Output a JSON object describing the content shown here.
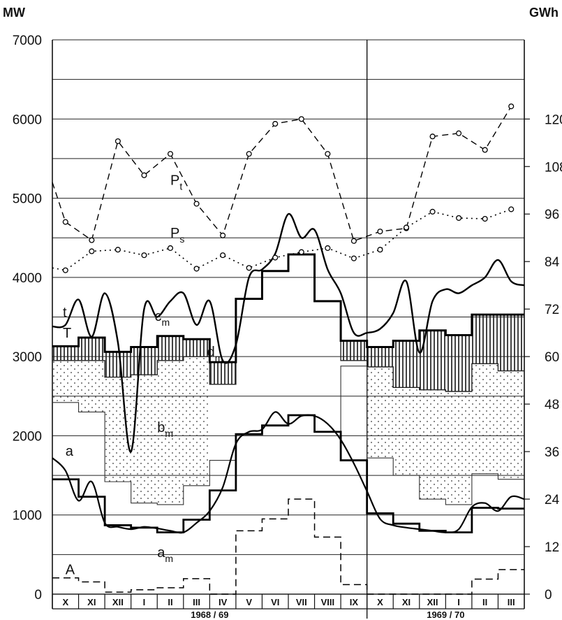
{
  "chart_data": {
    "type": "line",
    "y_left_label": "MW",
    "y_right_label": "GWh",
    "ylim_left": [
      0,
      7000
    ],
    "ylim_right": [
      0,
      140
    ],
    "y_left_ticks": [
      0,
      1000,
      2000,
      3000,
      4000,
      5000,
      6000,
      7000
    ],
    "y_right_ticks": [
      0,
      12,
      24,
      36,
      48,
      60,
      72,
      84,
      96,
      108,
      120
    ],
    "months": [
      "X",
      "XI",
      "XII",
      "I",
      "II",
      "III",
      "IV",
      "V",
      "VI",
      "VII",
      "VIII",
      "IX",
      "X",
      "XI",
      "XII",
      "I",
      "II",
      "III"
    ],
    "periods": [
      {
        "label": "1968 / 69",
        "start": 0,
        "end": 12
      },
      {
        "label": "1969 / 70",
        "start": 12,
        "end": 18
      }
    ],
    "grid": true,
    "series": [
      {
        "name": "Pt",
        "style": "dashed",
        "marker": "circle",
        "x": [
          0,
          0.5,
          1.5,
          2.5,
          3.5,
          4.5,
          5.5,
          6.5,
          7.5,
          8.5,
          9.5,
          10.5,
          11.5,
          12.5,
          13.5,
          14.5,
          15.5,
          16.5,
          17.5
        ],
        "y": [
          5200,
          4700,
          4470,
          5720,
          5290,
          5560,
          4930,
          4530,
          5560,
          5940,
          6000,
          5560,
          4460,
          4580,
          4620,
          5780,
          5820,
          5610,
          6160
        ]
      },
      {
        "name": "Ps",
        "style": "dotted",
        "marker": "circle",
        "x": [
          0,
          0.5,
          1.5,
          2.5,
          3.5,
          4.5,
          5.5,
          6.5,
          7.5,
          8.5,
          9.5,
          10.5,
          11.5,
          12.5,
          13.5,
          14.5,
          15.5,
          16.5,
          17.5
        ],
        "y": [
          4120,
          4090,
          4330,
          4350,
          4280,
          4370,
          4110,
          4280,
          4120,
          4250,
          4320,
          4370,
          4240,
          4350,
          4630,
          4830,
          4750,
          4740,
          4860
        ]
      },
      {
        "name": "t",
        "style": "solid",
        "x": [
          0,
          0.5,
          1,
          1.5,
          2,
          2.5,
          3,
          3.5,
          4,
          4.5,
          5,
          5.5,
          6,
          6.5,
          7,
          7.5,
          8,
          8.5,
          9,
          9.5,
          10,
          10.5,
          11,
          11.5,
          12,
          12.5,
          13,
          13.5,
          14,
          14.5,
          15,
          15.5,
          16,
          16.5,
          17,
          17.5,
          18
        ],
        "y": [
          3380,
          3400,
          3720,
          3250,
          3800,
          3180,
          1800,
          3600,
          3500,
          3700,
          3800,
          3400,
          3700,
          2950,
          3150,
          4000,
          4100,
          4300,
          4800,
          4500,
          4600,
          4100,
          3800,
          3300,
          3300,
          3350,
          3550,
          3950,
          3050,
          3700,
          3850,
          3800,
          3900,
          4000,
          4220,
          3950,
          3900
        ]
      },
      {
        "name": "T",
        "style": "step",
        "x": [
          0,
          1,
          2,
          3,
          4,
          5,
          6,
          7,
          8,
          9,
          10,
          11,
          12,
          13,
          14,
          15,
          16,
          17
        ],
        "y": [
          3130,
          3240,
          3060,
          3120,
          3260,
          3220,
          2930,
          3730,
          4080,
          4290,
          3700,
          3200,
          3120,
          3200,
          3330,
          3270,
          3530,
          3530
        ]
      },
      {
        "name": "a",
        "style": "solid",
        "x": [
          0,
          0.5,
          1,
          1.5,
          2,
          2.5,
          3,
          3.5,
          4,
          4.5,
          5,
          5.5,
          6,
          6.5,
          7,
          7.5,
          8,
          8.5,
          9,
          9.5,
          10,
          10.5,
          11,
          11.5,
          12,
          12.5,
          13,
          13.5,
          14,
          14.5,
          15,
          15.5,
          16,
          16.5,
          17,
          17.5,
          18
        ],
        "y": [
          1720,
          1560,
          1180,
          1420,
          900,
          850,
          820,
          850,
          830,
          800,
          780,
          900,
          1050,
          1350,
          1900,
          2050,
          2080,
          2300,
          2150,
          2250,
          2250,
          2150,
          1950,
          1650,
          1300,
          950,
          870,
          840,
          820,
          800,
          780,
          820,
          1100,
          1150,
          1050,
          1230,
          1200
        ]
      },
      {
        "name": "am",
        "style": "step",
        "x": [
          0,
          1,
          2,
          3,
          4,
          5,
          6,
          7,
          8,
          9,
          10,
          11,
          12,
          13,
          14,
          15,
          16,
          17
        ],
        "y": [
          1450,
          1230,
          870,
          840,
          780,
          940,
          1310,
          2020,
          2130,
          2260,
          2050,
          1690,
          1020,
          890,
          800,
          780,
          1090,
          1080
        ]
      },
      {
        "name": "A",
        "style": "dashed-step",
        "x": [
          0,
          1,
          2,
          3,
          4,
          5,
          6,
          7,
          8,
          9,
          10,
          11,
          12,
          13,
          14,
          15,
          16,
          17
        ],
        "y": [
          205,
          155,
          25,
          55,
          80,
          195,
          0,
          800,
          950,
          1200,
          720,
          120,
          0,
          0,
          0,
          0,
          190,
          310
        ]
      },
      {
        "name": "a+b (dotted area top)",
        "style": "step-fill",
        "x": [
          0,
          1,
          2,
          3,
          4,
          5,
          6,
          7,
          8,
          9,
          10,
          11,
          12,
          13,
          14,
          15,
          16,
          17
        ],
        "y": [
          2950,
          2950,
          2740,
          2770,
          2950,
          3000,
          2650,
          3730,
          4080,
          4290,
          3700,
          2950,
          2870,
          2610,
          2580,
          2560,
          2910,
          2820
        ]
      },
      {
        "name": "base line (light)",
        "style": "step",
        "x": [
          0,
          1,
          2,
          3,
          4,
          5,
          6,
          7,
          8,
          9,
          10,
          11,
          12,
          13,
          14,
          15,
          16,
          17
        ],
        "y": [
          2420,
          2300,
          1420,
          1150,
          1130,
          1370,
          1690,
          2020,
          2130,
          2260,
          2050,
          2880,
          1720,
          1500,
          1200,
          1130,
          1520,
          1450
        ]
      }
    ],
    "annotations": [
      {
        "text": "P",
        "sub": "t",
        "x": 4.5,
        "y": 5170
      },
      {
        "text": "P",
        "sub": "s",
        "x": 4.5,
        "y": 4500
      },
      {
        "text": "t",
        "x": 0.4,
        "y": 3500
      },
      {
        "text": "T",
        "x": 0.4,
        "y": 3240
      },
      {
        "text": "a",
        "x": 0.5,
        "y": 1750
      },
      {
        "text": "A",
        "x": 0.5,
        "y": 250
      },
      {
        "text": "c",
        "sub": "m",
        "x": 3.9,
        "y": 3450
      },
      {
        "text": "d",
        "sub": "m",
        "x": 5.9,
        "y": 3000
      },
      {
        "text": "b",
        "sub": "m",
        "x": 4.0,
        "y": 2050
      },
      {
        "text": "a",
        "sub": "m",
        "x": 4.0,
        "y": 470
      }
    ]
  }
}
